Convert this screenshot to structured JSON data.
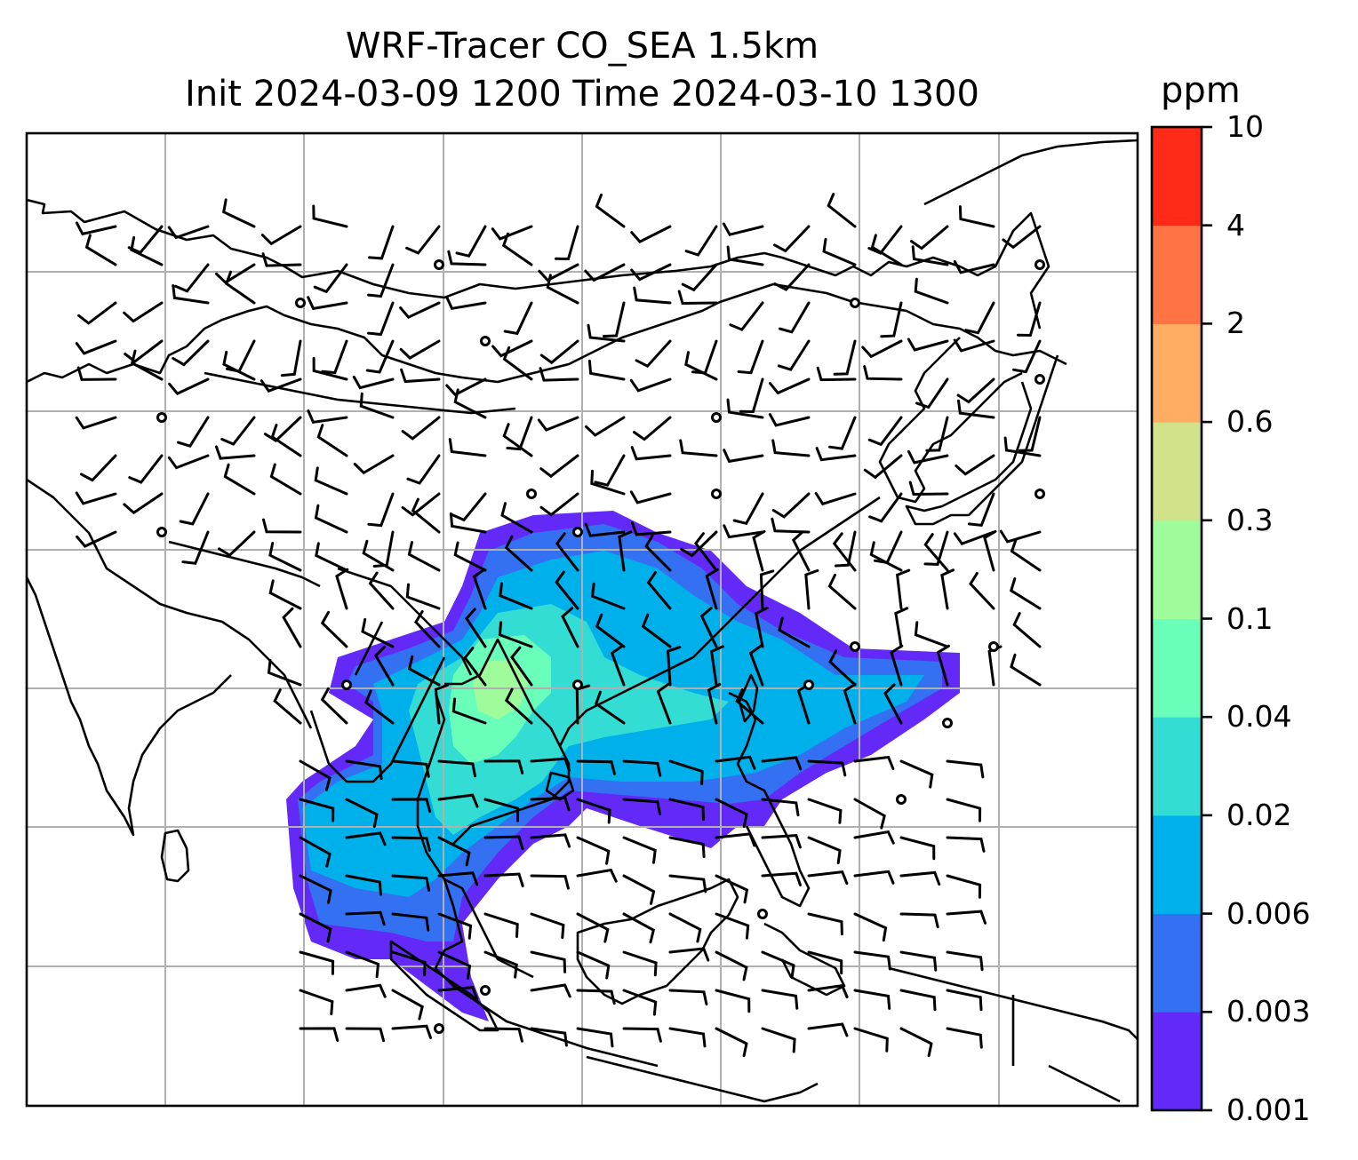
{
  "title": {
    "line1": "WRF-Tracer CO_SEA 1.5km",
    "line2": "Init 2024-03-09 1200 Time 2024-03-10 1300"
  },
  "colorbar": {
    "unit": "ppm",
    "ticks": [
      "0.001",
      "0.003",
      "0.006",
      "0.02",
      "0.04",
      "0.1",
      "0.3",
      "0.6",
      "2",
      "4",
      "10"
    ],
    "colors": [
      "#6229f7",
      "#3471f2",
      "#00b0ea",
      "#33ddd3",
      "#6afebb",
      "#9efd9a",
      "#d1e28a",
      "#fead63",
      "#ff7344",
      "#ff2a18"
    ]
  },
  "map": {
    "gridlines": true,
    "coastline_color": "#000000",
    "grid_color": "#b0b0b0"
  }
}
